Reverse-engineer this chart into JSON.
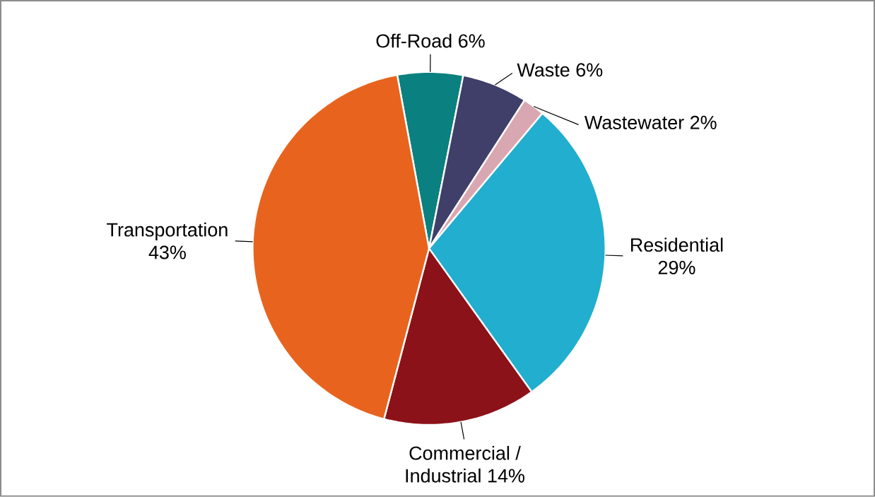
{
  "chart_data": {
    "type": "pie",
    "categories": [
      "Off-Road",
      "Waste",
      "Wastewater",
      "Residential",
      "Commercial / Industrial",
      "Transportation"
    ],
    "values": [
      6,
      6,
      2,
      29,
      14,
      43
    ],
    "value_labels": [
      "6%",
      "6%",
      "2%",
      "29%",
      "14%",
      "43%"
    ],
    "colors": [
      "#0b8080",
      "#3f3f6a",
      "#d8a7b1",
      "#21aecf",
      "#8c1219",
      "#e8641e"
    ]
  }
}
